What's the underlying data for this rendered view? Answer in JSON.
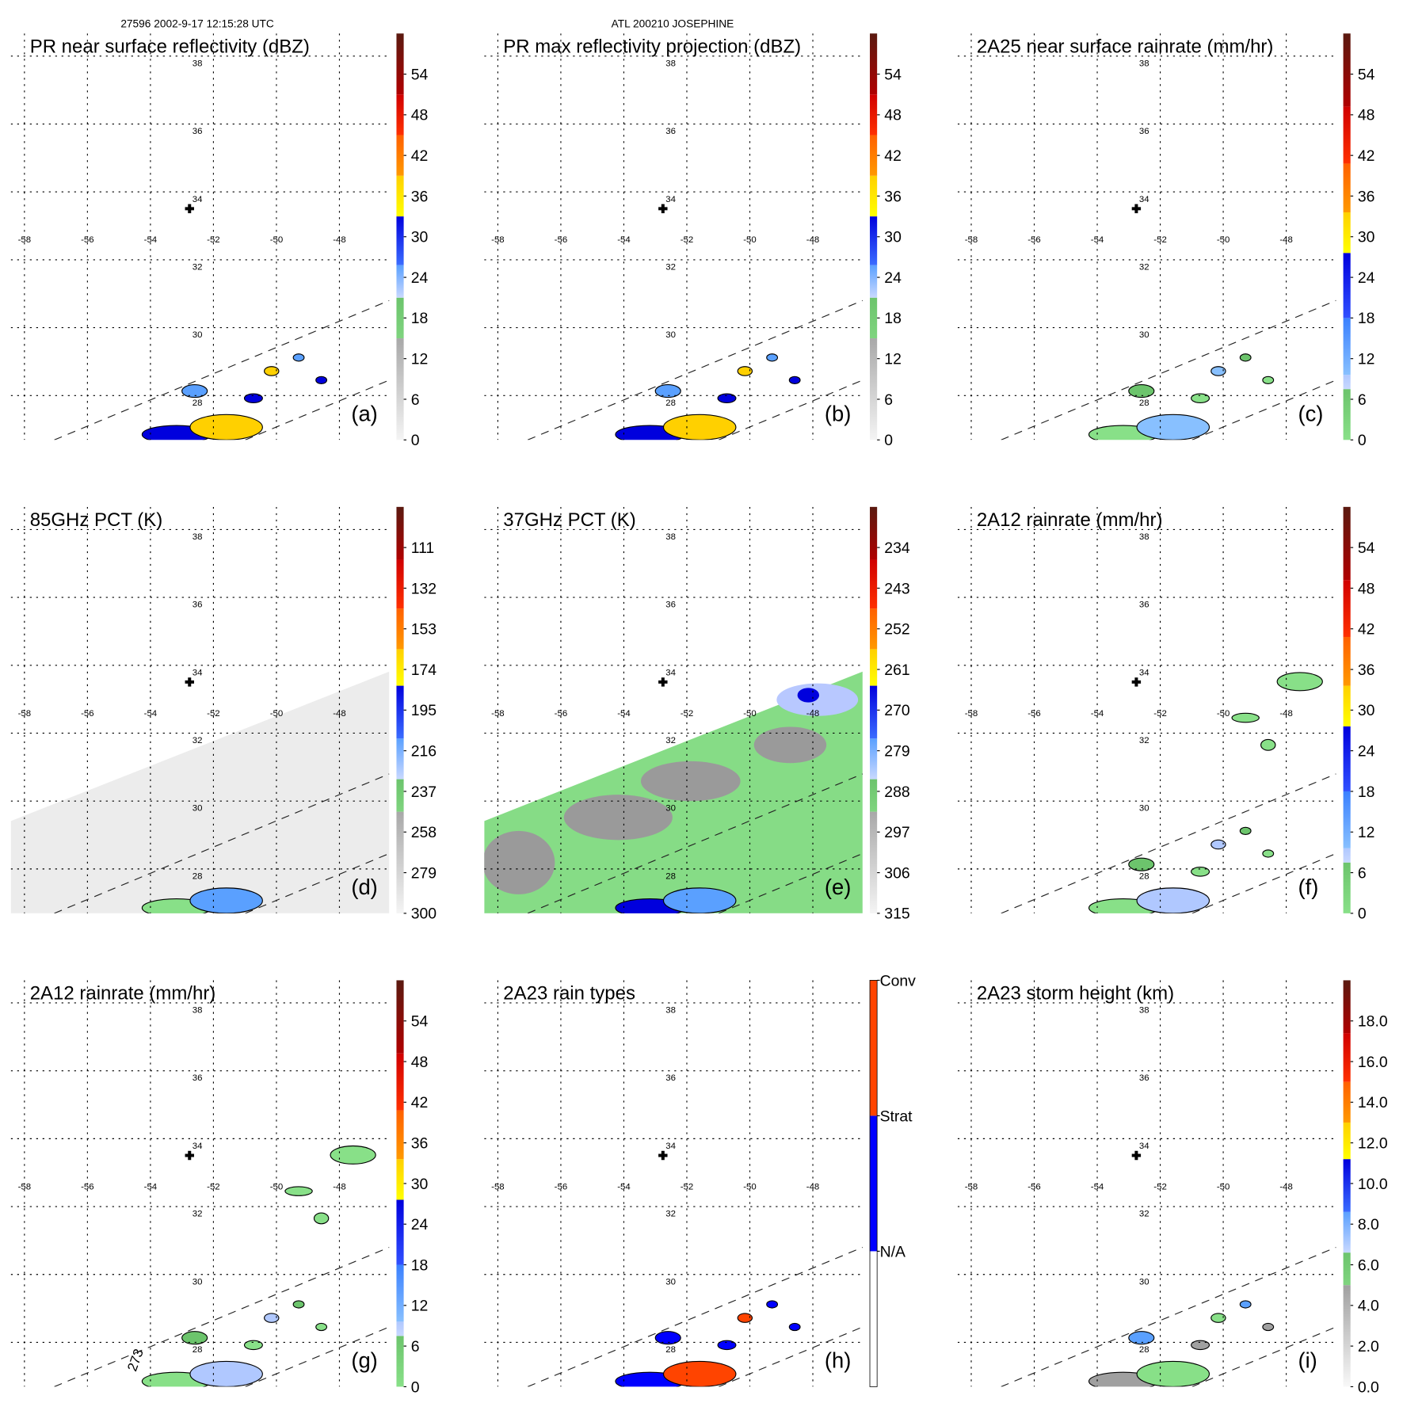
{
  "header": {
    "left": "27596 2002-9-17 12:15:28 UTC",
    "center": "ATL 200210 JOSEPHINE"
  },
  "map": {
    "lon_labels": [
      "-58",
      "-56",
      "-54",
      "-52",
      "-50",
      "-48"
    ],
    "lon_values": [
      -58,
      -56,
      -54,
      -52,
      -50,
      -48
    ],
    "lat_labels": [
      "38",
      "36",
      "34",
      "32",
      "30",
      "28"
    ],
    "lat_values": [
      38,
      36,
      34,
      32,
      30,
      28
    ],
    "center_marker": {
      "lon": -52.5,
      "lat": 33.4
    }
  },
  "chart_data": [
    {
      "type": "heatmap",
      "id": "a",
      "title": "PR near surface reflectivity (dBZ)",
      "letter": "(a)",
      "swath": "pr",
      "colorbar": {
        "range": [
          0,
          10
        ],
        "ticks": [
          "0",
          "6",
          "12",
          "18",
          "24",
          "30",
          "36",
          "42",
          "48",
          "54"
        ],
        "tick_pos": [
          0,
          1,
          2,
          3,
          4,
          5,
          6,
          7,
          8,
          9
        ],
        "segments": [
          [
            0,
            2.5,
            "#f4f4f4",
            "#a8a8a8"
          ],
          [
            2.5,
            3.5,
            "#7fd47f",
            "#6cc46c"
          ],
          [
            3.5,
            4.3,
            "#c8d8ff",
            "#5aa0ff"
          ],
          [
            4.3,
            5.5,
            "#3a6cff",
            "#0000dd"
          ],
          [
            5.5,
            6.5,
            "#ffff00",
            "#ffd000"
          ],
          [
            6.5,
            7.5,
            "#ff9900",
            "#ff6000"
          ],
          [
            7.5,
            8.5,
            "#ff3000",
            "#d00000"
          ],
          [
            8.5,
            10,
            "#b00000",
            "#5a1a10"
          ]
        ]
      }
    },
    {
      "type": "heatmap",
      "id": "b",
      "title": "PR max reflectivity projection (dBZ)",
      "letter": "(b)",
      "swath": "pr",
      "colorbar": {
        "range": [
          0,
          10
        ],
        "ticks": [
          "0",
          "6",
          "12",
          "18",
          "24",
          "30",
          "36",
          "42",
          "48",
          "54"
        ],
        "tick_pos": [
          0,
          1,
          2,
          3,
          4,
          5,
          6,
          7,
          8,
          9
        ],
        "segments": [
          [
            0,
            2.5,
            "#f4f4f4",
            "#a8a8a8"
          ],
          [
            2.5,
            3.5,
            "#7fd47f",
            "#6cc46c"
          ],
          [
            3.5,
            4.3,
            "#c8d8ff",
            "#5aa0ff"
          ],
          [
            4.3,
            5.5,
            "#3a6cff",
            "#0000dd"
          ],
          [
            5.5,
            6.5,
            "#ffff00",
            "#ffd000"
          ],
          [
            6.5,
            7.5,
            "#ff9900",
            "#ff6000"
          ],
          [
            7.5,
            8.5,
            "#ff3000",
            "#d00000"
          ],
          [
            8.5,
            10,
            "#b00000",
            "#5a1a10"
          ]
        ]
      }
    },
    {
      "type": "heatmap",
      "id": "c",
      "title": "2A25 near surface rainrate (mm/hr)",
      "letter": "(c)",
      "swath": "pr",
      "colorbar": {
        "range": [
          0,
          10
        ],
        "ticks": [
          "0",
          "6",
          "12",
          "18",
          "24",
          "30",
          "36",
          "42",
          "48",
          "54"
        ],
        "tick_pos": [
          0,
          1,
          2,
          3,
          4,
          5,
          6,
          7,
          8,
          9
        ],
        "segments": [
          [
            0,
            1.25,
            "#88e088",
            "#6cc46c"
          ],
          [
            1.25,
            1.6,
            "#c8d8ff",
            "#b0c8ff"
          ],
          [
            1.6,
            3,
            "#88c0ff",
            "#3a80ff"
          ],
          [
            3,
            4.6,
            "#3050ff",
            "#0000dd"
          ],
          [
            4.6,
            5.6,
            "#ffff00",
            "#ffd000"
          ],
          [
            5.6,
            6.8,
            "#ff9900",
            "#ff6000"
          ],
          [
            6.8,
            8.2,
            "#ff3000",
            "#d00000"
          ],
          [
            8.2,
            10,
            "#b00000",
            "#5a1a10"
          ]
        ]
      }
    },
    {
      "type": "heatmap",
      "id": "d",
      "title": "85GHz PCT (K)",
      "letter": "(d)",
      "swath": "tmi",
      "colorbar": {
        "range": [
          0,
          10
        ],
        "ticks": [
          "300",
          "279",
          "258",
          "237",
          "216",
          "195",
          "174",
          "153",
          "132",
          "111"
        ],
        "tick_pos": [
          0,
          1,
          2,
          3,
          4,
          5,
          6,
          7,
          8,
          9
        ],
        "segments": [
          [
            0,
            2.5,
            "#f4f4f4",
            "#a8a8a8"
          ],
          [
            2.5,
            3.3,
            "#7fd47f",
            "#6cc46c"
          ],
          [
            3.3,
            4.3,
            "#c8d8ff",
            "#5aa0ff"
          ],
          [
            4.3,
            5.6,
            "#3a6cff",
            "#0000dd"
          ],
          [
            5.6,
            6.5,
            "#ffff00",
            "#ffd000"
          ],
          [
            6.5,
            7.5,
            "#ff9900",
            "#ff6000"
          ],
          [
            7.5,
            8.7,
            "#ff3000",
            "#d00000"
          ],
          [
            8.7,
            10,
            "#b00000",
            "#5a1a10"
          ]
        ]
      }
    },
    {
      "type": "heatmap",
      "id": "e",
      "title": "37GHz PCT (K)",
      "letter": "(e)",
      "swath": "tmi",
      "colorbar": {
        "range": [
          0,
          10
        ],
        "ticks": [
          "315",
          "306",
          "297",
          "288",
          "279",
          "270",
          "261",
          "252",
          "243",
          "234"
        ],
        "tick_pos": [
          0,
          1,
          2,
          3,
          4,
          5,
          6,
          7,
          8,
          9
        ],
        "segments": [
          [
            0,
            2.5,
            "#f4f4f4",
            "#a8a8a8"
          ],
          [
            2.5,
            3.3,
            "#7fd47f",
            "#6cc46c"
          ],
          [
            3.3,
            4.3,
            "#c8d8ff",
            "#5aa0ff"
          ],
          [
            4.3,
            5.6,
            "#3a6cff",
            "#0000dd"
          ],
          [
            5.6,
            6.5,
            "#ffff00",
            "#ffd000"
          ],
          [
            6.5,
            7.5,
            "#ff9900",
            "#ff6000"
          ],
          [
            7.5,
            8.7,
            "#ff3000",
            "#d00000"
          ],
          [
            8.7,
            10,
            "#b00000",
            "#5a1a10"
          ]
        ]
      }
    },
    {
      "type": "heatmap",
      "id": "f",
      "title": "2A12 rainrate (mm/hr)",
      "letter": "(f)",
      "swath": "pr",
      "colorbar": {
        "range": [
          0,
          10
        ],
        "ticks": [
          "0",
          "6",
          "12",
          "18",
          "24",
          "30",
          "36",
          "42",
          "48",
          "54"
        ],
        "tick_pos": [
          0,
          1,
          2,
          3,
          4,
          5,
          6,
          7,
          8,
          9
        ],
        "segments": [
          [
            0,
            1.25,
            "#88e088",
            "#6cc46c"
          ],
          [
            1.25,
            1.6,
            "#c8d8ff",
            "#b0c8ff"
          ],
          [
            1.6,
            3,
            "#88c0ff",
            "#3a80ff"
          ],
          [
            3,
            4.6,
            "#3050ff",
            "#0000dd"
          ],
          [
            4.6,
            5.6,
            "#ffff00",
            "#ffd000"
          ],
          [
            5.6,
            6.8,
            "#ff9900",
            "#ff6000"
          ],
          [
            6.8,
            8.2,
            "#ff3000",
            "#d00000"
          ],
          [
            8.2,
            10,
            "#b00000",
            "#5a1a10"
          ]
        ]
      }
    },
    {
      "type": "heatmap",
      "id": "g",
      "title": "2A12 rainrate (mm/hr)",
      "letter": "(g)",
      "swath": "pr",
      "annotation": "273",
      "colorbar": {
        "range": [
          0,
          10
        ],
        "ticks": [
          "0",
          "6",
          "12",
          "18",
          "24",
          "30",
          "36",
          "42",
          "48",
          "54"
        ],
        "tick_pos": [
          0,
          1,
          2,
          3,
          4,
          5,
          6,
          7,
          8,
          9
        ],
        "segments": [
          [
            0,
            1.25,
            "#88e088",
            "#6cc46c"
          ],
          [
            1.25,
            1.6,
            "#c8d8ff",
            "#b0c8ff"
          ],
          [
            1.6,
            3,
            "#88c0ff",
            "#3a80ff"
          ],
          [
            3,
            4.6,
            "#3050ff",
            "#0000dd"
          ],
          [
            4.6,
            5.6,
            "#ffff00",
            "#ffd000"
          ],
          [
            5.6,
            6.8,
            "#ff9900",
            "#ff6000"
          ],
          [
            6.8,
            8.2,
            "#ff3000",
            "#d00000"
          ],
          [
            8.2,
            10,
            "#b00000",
            "#5a1a10"
          ]
        ]
      }
    },
    {
      "type": "heatmap",
      "id": "h",
      "title": "2A23 rain types",
      "letter": "(h)",
      "swath": "pr",
      "colorbar": {
        "range": [
          0,
          3
        ],
        "ticks": [
          "N/A",
          "Strat",
          "Conv"
        ],
        "tick_pos": [
          1,
          2,
          3
        ],
        "segments": [
          [
            0,
            1,
            "#ffffff",
            "#ffffff"
          ],
          [
            1,
            2,
            "#0000ff",
            "#0000ff"
          ],
          [
            2,
            3,
            "#ff4400",
            "#ff4400"
          ]
        ]
      }
    },
    {
      "type": "heatmap",
      "id": "i",
      "title": "2A23 storm height (km)",
      "letter": "(i)",
      "swath": "pr",
      "colorbar": {
        "range": [
          0,
          10
        ],
        "ticks": [
          "0.0",
          "2.0",
          "4.0",
          "6.0",
          "8.0",
          "10.0",
          "12.0",
          "14.0",
          "16.0",
          "18.0"
        ],
        "tick_pos": [
          0,
          1,
          2,
          3,
          4,
          5,
          6,
          7,
          8,
          9
        ],
        "segments": [
          [
            0,
            2.5,
            "#f8f8f8",
            "#a0a0a0"
          ],
          [
            2.5,
            3.3,
            "#7fd47f",
            "#6cc46c"
          ],
          [
            3.3,
            4.3,
            "#c8d8ff",
            "#5aa0ff"
          ],
          [
            4.3,
            5.6,
            "#3a6cff",
            "#0000dd"
          ],
          [
            5.6,
            6.5,
            "#ffff00",
            "#ffd000"
          ],
          [
            6.5,
            7.5,
            "#ff9900",
            "#ff6000"
          ],
          [
            7.5,
            8.7,
            "#ff3000",
            "#d00000"
          ],
          [
            8.7,
            10,
            "#b00000",
            "#5a1a10"
          ]
        ]
      }
    }
  ]
}
